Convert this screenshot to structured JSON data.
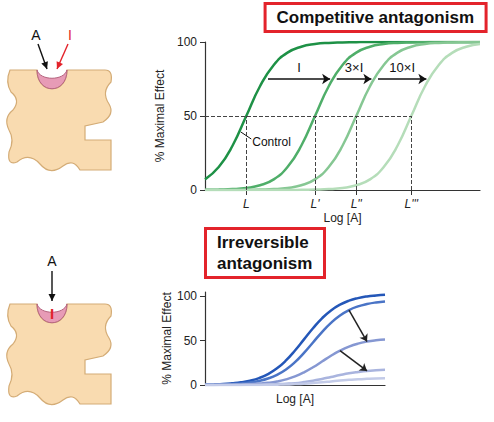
{
  "chart_data": [
    {
      "type": "line",
      "title": "Competitive antagonism",
      "x_label": "Log [A]",
      "y_label": "% Maximal Effect",
      "x": [
        0,
        0.5,
        1,
        1.5,
        2,
        2.5,
        3,
        3.5,
        4,
        4.5,
        5,
        5.5,
        6,
        6.5,
        7,
        7.5,
        8,
        8.5,
        9,
        9.5,
        10
      ],
      "series": [
        {
          "name": "Control",
          "color": "#1e9146",
          "values": [
            7.2,
            15.5,
            29.9,
            50,
            70.1,
            84.5,
            92.8,
            96.8,
            98.6,
            99.4,
            99.7,
            99.9,
            100,
            100,
            100,
            100,
            100,
            100,
            100,
            100,
            100
          ]
        },
        {
          "name": "I",
          "color": "#4fae69",
          "values": [
            0.1,
            0.3,
            0.6,
            1.4,
            3.2,
            7.2,
            15.5,
            29.9,
            50,
            70.1,
            84.5,
            92.8,
            96.8,
            98.6,
            99.4,
            99.7,
            99.9,
            100,
            100,
            100,
            100
          ]
        },
        {
          "name": "3×I",
          "color": "#86c793",
          "values": [
            0,
            0,
            0,
            0.1,
            0.3,
            0.6,
            1.4,
            3.2,
            7.2,
            15.5,
            29.9,
            50,
            70.1,
            84.5,
            92.8,
            96.8,
            98.6,
            99.4,
            99.7,
            99.9,
            100
          ]
        },
        {
          "name": "10×I",
          "color": "#b5ddb9",
          "values": [
            0,
            0,
            0,
            0,
            0,
            0,
            0,
            0.1,
            0.3,
            0.6,
            1.4,
            3.2,
            7.2,
            15.5,
            29.9,
            50,
            70.1,
            84.5,
            92.8,
            96.8,
            98.6
          ]
        }
      ],
      "xlim": [
        0,
        10
      ],
      "xticks": [
        {
          "value": 1.5,
          "label": "L"
        },
        {
          "value": 4,
          "label": "L'"
        },
        {
          "value": 5.5,
          "label": "L''"
        },
        {
          "value": 7.5,
          "label": "L'''"
        }
      ],
      "ylim": [
        0,
        100
      ],
      "yticks": [
        0,
        50,
        100
      ],
      "grid": false,
      "reference_line": {
        "y": 50,
        "line_style": "dashed"
      },
      "arrow_level": 75,
      "annotations": [
        {
          "text": "A",
          "color": "#111111"
        },
        {
          "text": "I",
          "color": "#e3232b"
        }
      ]
    },
    {
      "type": "line",
      "title": "Irreversible antagonism",
      "x_label": "Log [A]",
      "y_label": "% Maximal Effect",
      "x": [
        0,
        0.5,
        1,
        1.5,
        2,
        2.5,
        3,
        3.5,
        4,
        4.5,
        5,
        5.5,
        6,
        6.5,
        7,
        7.5,
        8,
        8.5,
        9,
        9.5,
        10
      ],
      "series": [
        {
          "color": "#2457b8",
          "values": [
            0.4,
            0.7,
            1.1,
            1.9,
            3.0,
            4.9,
            7.8,
            12.3,
            18.8,
            27.7,
            38.9,
            51.5,
            64.1,
            75.3,
            84.2,
            90.7,
            95.2,
            98.1,
            100,
            101.1,
            101.9
          ]
        },
        {
          "color": "#4a74c6",
          "values": [
            0.2,
            0.4,
            0.6,
            1.1,
            1.7,
            2.8,
            4.6,
            7.3,
            11.4,
            17.5,
            25.8,
            36.2,
            48.0,
            59.8,
            70.2,
            78.5,
            84.6,
            88.7,
            91.4,
            93.2,
            94.3
          ]
        },
        {
          "color": "#8597d2",
          "values": [
            0.1,
            0.1,
            0.2,
            0.4,
            0.6,
            1.0,
            1.6,
            2.5,
            4.0,
            6.3,
            9.7,
            14.3,
            20.0,
            26.5,
            33.0,
            38.7,
            43.3,
            46.7,
            49.0,
            50.5,
            51.4
          ]
        },
        {
          "color": "#a9b4de",
          "values": [
            0,
            0,
            0,
            0.1,
            0.1,
            0.2,
            0.3,
            0.5,
            0.9,
            1.4,
            2.1,
            3.3,
            4.8,
            6.8,
            9.0,
            11.2,
            13.2,
            14.7,
            15.9,
            16.6,
            17.1
          ]
        },
        {
          "color": "#c3cbe8",
          "values": [
            0,
            0,
            0,
            0,
            0.1,
            0.1,
            0.1,
            0.2,
            0.4,
            0.6,
            1.0,
            1.5,
            2.2,
            3.0,
            4.0,
            5.0,
            5.8,
            6.5,
            7.0,
            7.4,
            7.6
          ]
        }
      ],
      "xlim": [
        0,
        10
      ],
      "xticks": [],
      "ylim": [
        0,
        105
      ],
      "yticks": [
        0,
        50,
        100
      ],
      "grid": false,
      "tick_labels": "y",
      "annotations": [
        {
          "text": "A",
          "color": "#111111"
        },
        {
          "text": "I",
          "color": "#e3232b"
        }
      ]
    }
  ]
}
